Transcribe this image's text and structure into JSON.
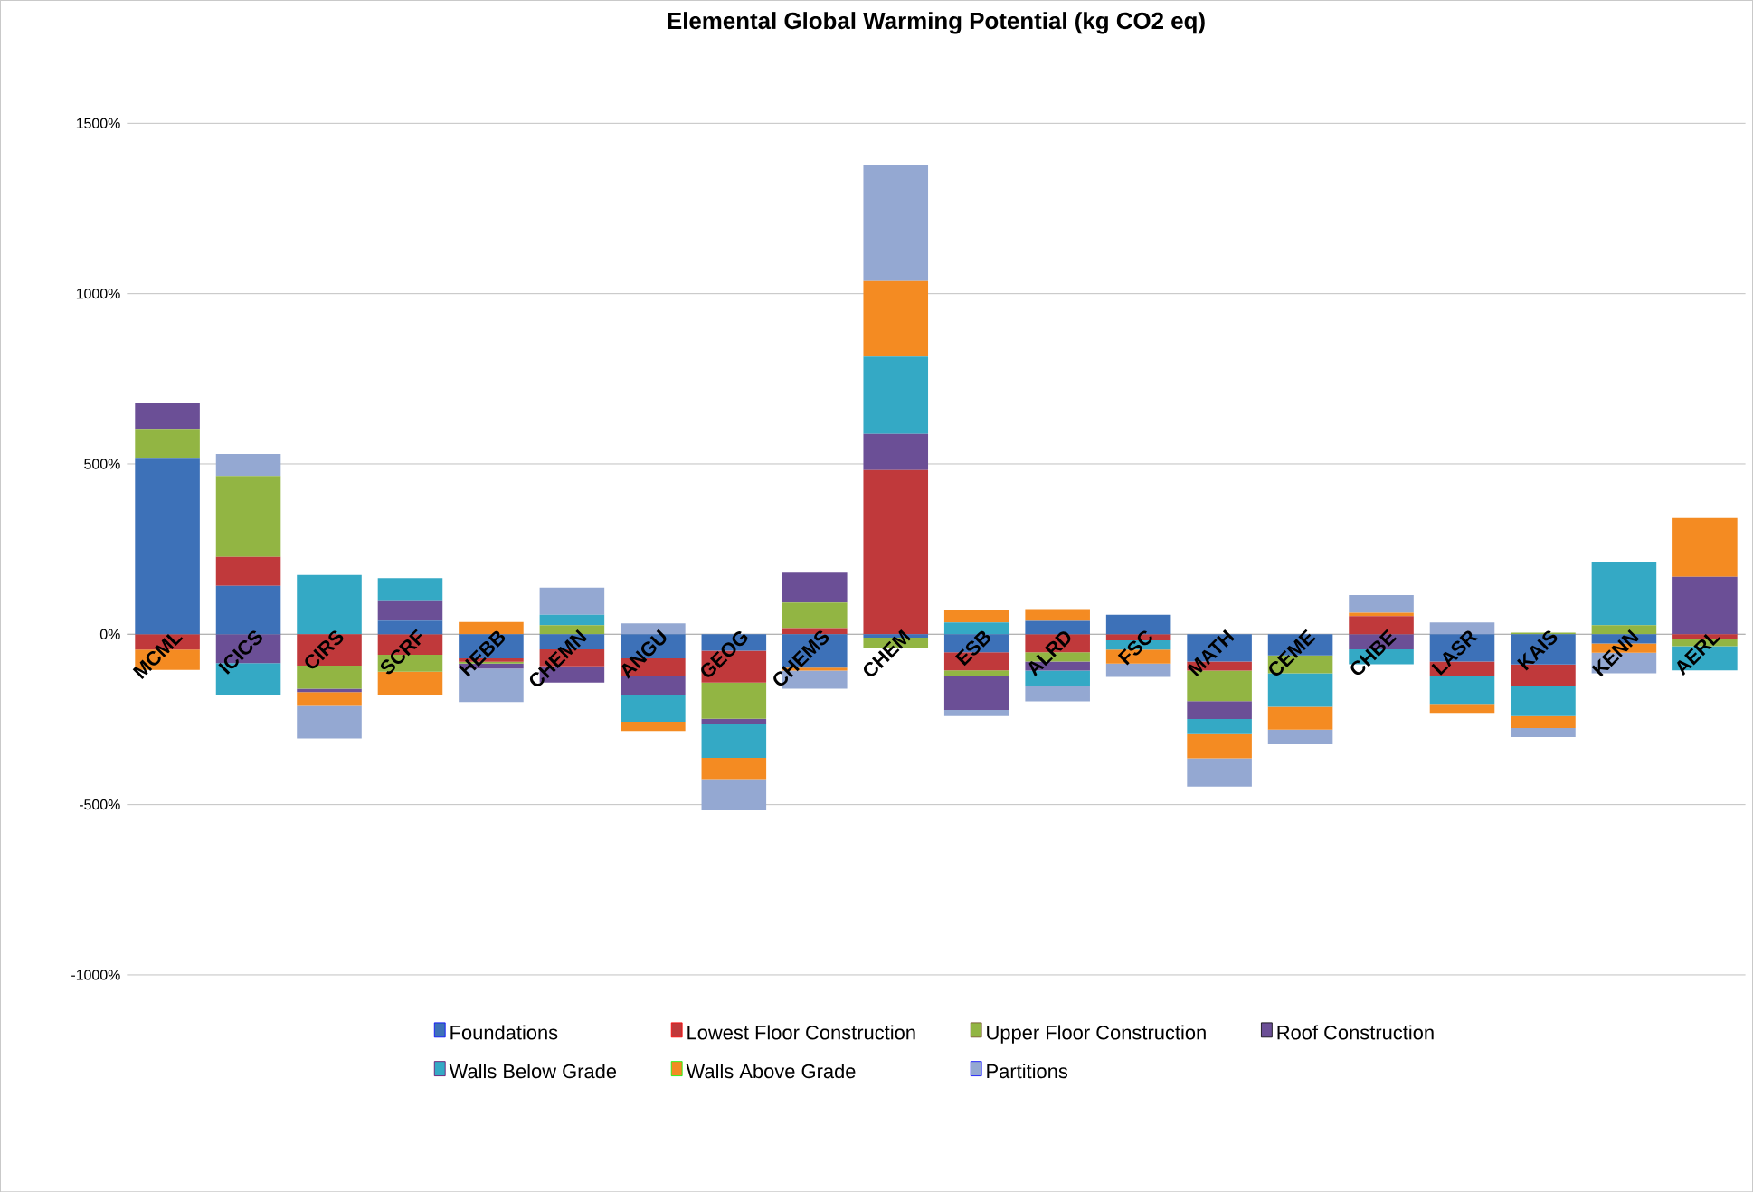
{
  "chart_data": {
    "type": "bar",
    "stacked": true,
    "title": "Elemental Global Warming Potential (kg CO2 eq)",
    "categories": [
      "MCML",
      "ICICS",
      "CIRS",
      "SCRF",
      "HEBB",
      "CHEMN",
      "ANGU",
      "GEOG",
      "CHEMS",
      "CHEM",
      "ESB",
      "ALRD",
      "FSC",
      "MATH",
      "CEME",
      "CHBE",
      "LASR",
      "KAIS",
      "KENN",
      "AERL"
    ],
    "series": [
      {
        "name": "Foundations",
        "color": "#3d71b8",
        "values": [
          518,
          142,
          0,
          40,
          -71,
          -44,
          -71,
          -48,
          -98,
          -10,
          -53,
          39,
          57,
          -80,
          -62,
          0,
          -80,
          -89,
          -27,
          0
        ]
      },
      {
        "name": "Lowest Floor Construction",
        "color": "#c0393b",
        "values": [
          -45,
          85,
          -92,
          -60,
          -10,
          -50,
          -53,
          -94,
          18,
          482,
          -53,
          -53,
          -18,
          -27,
          0,
          53,
          -44,
          -62,
          0,
          -14
        ]
      },
      {
        "name": "Upper Floor Construction",
        "color": "#92b543",
        "values": [
          85,
          238,
          -68,
          -50,
          -5,
          27,
          0,
          -106,
          75,
          -30,
          -18,
          -27,
          0,
          -89,
          -53,
          0,
          0,
          5,
          27,
          -21
        ]
      },
      {
        "name": "Roof Construction",
        "color": "#6b4f96",
        "values": [
          75,
          -85,
          -10,
          60,
          -15,
          -48,
          -53,
          -14,
          88,
          106,
          -98,
          -27,
          0,
          -53,
          0,
          -44,
          0,
          0,
          0,
          169
        ]
      },
      {
        "name": "Walls Below Grade",
        "color": "#34a9c5",
        "values": [
          0,
          -92,
          174,
          65,
          0,
          30,
          -80,
          -101,
          0,
          227,
          35,
          -45,
          -27,
          -44,
          -98,
          -44,
          -80,
          -89,
          186,
          -71
        ]
      },
      {
        "name": "Walls Above Grade",
        "color": "#f48b22",
        "values": [
          -60,
          0,
          -40,
          -70,
          36,
          0,
          -27,
          -62,
          -9,
          222,
          35,
          35,
          -41,
          -71,
          -67,
          10,
          -27,
          -35,
          -27,
          172
        ]
      },
      {
        "name": "Partitions",
        "color": "#94a8d2",
        "values": [
          0,
          64,
          -96,
          0,
          -98,
          80,
          32,
          -92,
          -53,
          342,
          -18,
          -45,
          -39,
          -83,
          -43,
          52,
          35,
          -27,
          -61,
          0
        ]
      }
    ],
    "ylim": [
      -1000,
      1500
    ],
    "yticks": [
      {
        "value": -1000,
        "label": "-1000%"
      },
      {
        "value": -500,
        "label": "-500%"
      },
      {
        "value": 0,
        "label": "0%"
      },
      {
        "value": 500,
        "label": "500%"
      },
      {
        "value": 1000,
        "label": "1000%"
      },
      {
        "value": 1500,
        "label": "1500%"
      }
    ],
    "grid": "y",
    "legend": "bottom"
  }
}
